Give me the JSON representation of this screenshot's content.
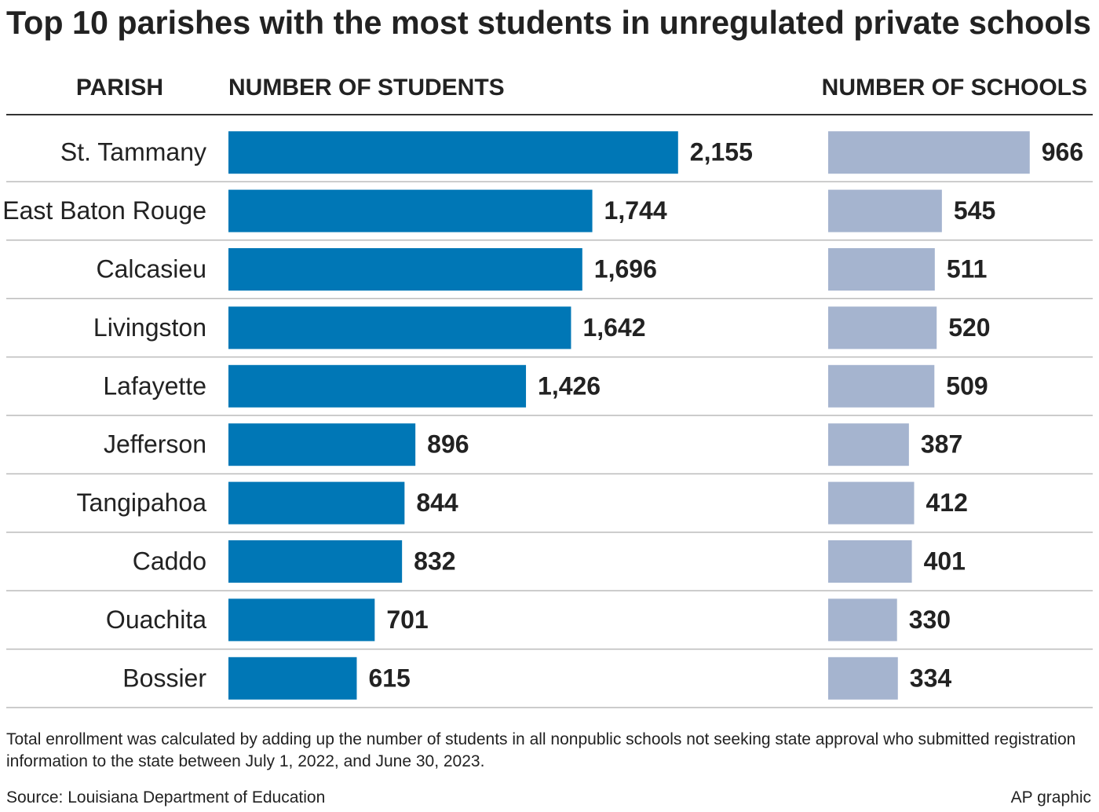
{
  "chart_data": {
    "type": "bar",
    "title": "Top 10 parishes with the most students in unregulated private schools",
    "category_label": "PARISH",
    "categories": [
      "St. Tammany",
      "East Baton Rouge",
      "Calcasieu",
      "Livingston",
      "Lafayette",
      "Jefferson",
      "Tangipahoa",
      "Caddo",
      "Ouachita",
      "Bossier"
    ],
    "series": [
      {
        "name": "NUMBER OF STUDENTS",
        "color": "#0077b6",
        "values": [
          2155,
          1744,
          1696,
          1642,
          1426,
          896,
          844,
          832,
          701,
          615
        ],
        "value_labels": [
          "2,155",
          "1,744",
          "1,696",
          "1,642",
          "1,426",
          "896",
          "844",
          "832",
          "701",
          "615"
        ]
      },
      {
        "name": "NUMBER OF SCHOOLS",
        "color": "#a5b4cf",
        "values": [
          966,
          545,
          511,
          520,
          509,
          387,
          412,
          401,
          330,
          334
        ],
        "value_labels": [
          "966",
          "545",
          "511",
          "520",
          "509",
          "387",
          "412",
          "401",
          "330",
          "334"
        ]
      }
    ],
    "note": "Total enrollment was calculated by adding up the number of students in all nonpublic schools not seeking state approval who submitted registration information to the state between July 1, 2022, and June 30, 2023.",
    "source": "Source: Louisiana Department of Education",
    "credit": "AP graphic"
  }
}
